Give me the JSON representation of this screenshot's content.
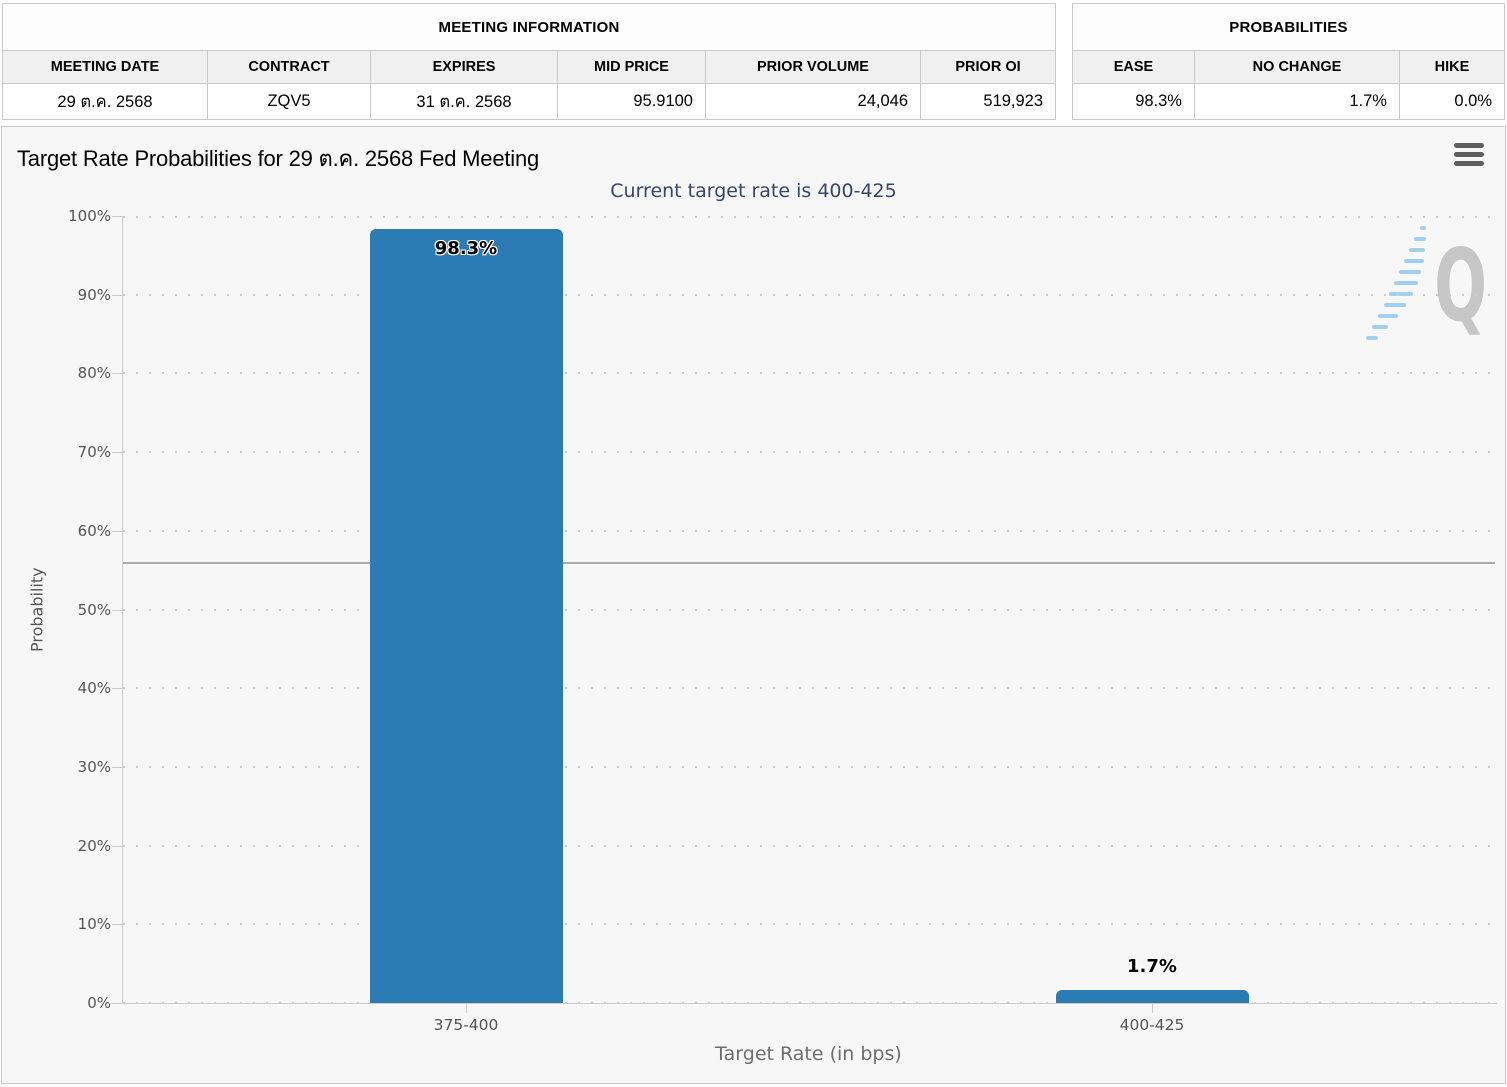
{
  "meeting_information": {
    "title": "MEETING INFORMATION",
    "columns": [
      "MEETING DATE",
      "CONTRACT",
      "EXPIRES",
      "MID PRICE",
      "PRIOR VOLUME",
      "PRIOR OI"
    ],
    "values": [
      "29 ต.ค. 2568",
      "ZQV5",
      "31 ต.ค. 2568",
      "95.9100",
      "24,046",
      "519,923"
    ]
  },
  "probabilities_summary": {
    "title": "PROBABILITIES",
    "columns": [
      "EASE",
      "NO CHANGE",
      "HIKE"
    ],
    "values": [
      "98.3%",
      "1.7%",
      "0.0%"
    ]
  },
  "chart_data": {
    "type": "bar",
    "title": "Target Rate Probabilities for 29 ต.ค. 2568 Fed Meeting",
    "subtitle": "Current target rate is 400-425",
    "categories": [
      "375-400",
      "400-425"
    ],
    "values": [
      98.3,
      1.7
    ],
    "data_labels": [
      "98.3%",
      "1.7%"
    ],
    "xlabel": "Target Rate (in bps)",
    "ylabel": "Probability",
    "ylim": [
      0,
      100
    ],
    "ytick_step": 10,
    "ytick_suffix": "%",
    "reference_line_y": 56,
    "grid": "dotted horizontal, every 10%",
    "legend": "none",
    "bar_color": "#2b7cb5",
    "subtitle_color": "#35466e"
  },
  "watermark": {
    "letter": "Q"
  },
  "icons": {
    "chart_context_menu": "hamburger-menu-icon"
  }
}
